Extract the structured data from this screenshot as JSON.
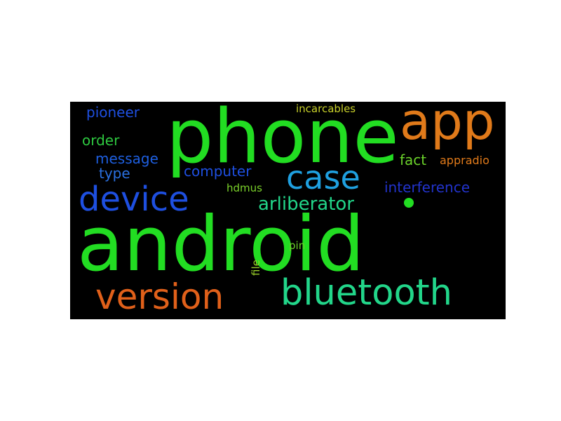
{
  "wordcloud": {
    "words": [
      {
        "text": "android",
        "color": "#22dd22"
      },
      {
        "text": "phone",
        "color": "#22dd22"
      },
      {
        "text": "app",
        "color": "#e07a1a"
      },
      {
        "text": "bluetooth",
        "color": "#22d68a"
      },
      {
        "text": "version",
        "color": "#e0601a"
      },
      {
        "text": "device",
        "color": "#1e4fe0"
      },
      {
        "text": "case",
        "color": "#1fa0e0"
      },
      {
        "text": "arliberator",
        "color": "#22d68a"
      },
      {
        "text": "interference",
        "color": "#2233cc"
      },
      {
        "text": "computer",
        "color": "#1e4fe0"
      },
      {
        "text": "message",
        "color": "#1e5fe0"
      },
      {
        "text": "pioneer",
        "color": "#1e4fe0"
      },
      {
        "text": "order",
        "color": "#2ec840"
      },
      {
        "text": "type",
        "color": "#2a70e0"
      },
      {
        "text": "fact",
        "color": "#6ad12a"
      },
      {
        "text": "appradio",
        "color": "#e07a1a"
      },
      {
        "text": "incarcables",
        "color": "#c9d12a"
      },
      {
        "text": "hdmus",
        "color": "#7ad12a"
      },
      {
        "text": "pin",
        "color": "#6ad12a"
      },
      {
        "text": "file",
        "color": "#9ad12a"
      },
      {
        "text": "dot",
        "color": "#22dd22"
      }
    ]
  }
}
